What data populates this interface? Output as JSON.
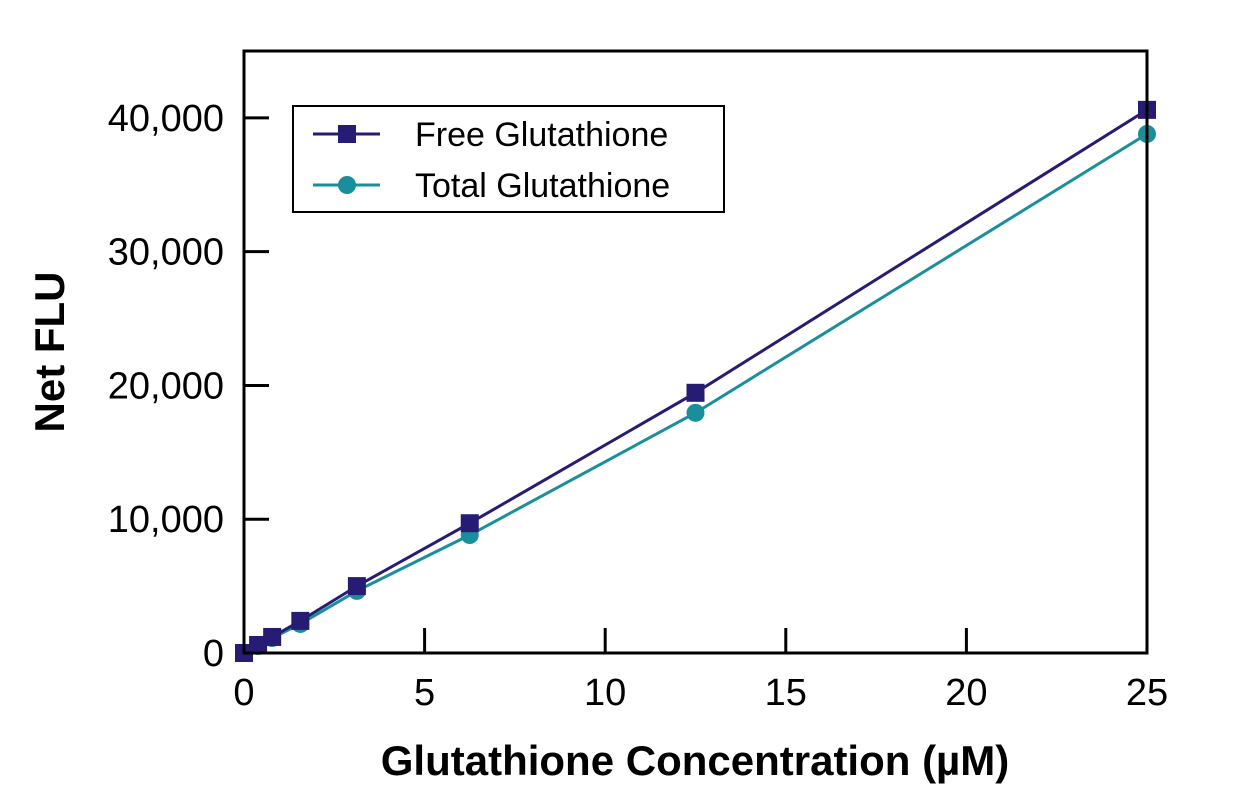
{
  "chart_data": {
    "type": "line",
    "title": "",
    "xlabel": "Glutathione Concentration (µM)",
    "ylabel": "Net FLU",
    "xlim": [
      0,
      25
    ],
    "ylim": [
      0,
      45000
    ],
    "xticks": [
      0,
      5,
      10,
      15,
      20,
      25
    ],
    "xtick_labels": [
      "0",
      "5",
      "10",
      "15",
      "20",
      "25"
    ],
    "yticks": [
      0,
      10000,
      20000,
      30000,
      40000
    ],
    "ytick_labels": [
      "0",
      "10,000",
      "20,000",
      "30,000",
      "40,000"
    ],
    "grid": false,
    "legend_position": "top-left",
    "x": [
      0,
      0.39,
      0.78,
      1.56,
      3.125,
      6.25,
      12.5,
      25
    ],
    "series": [
      {
        "name": "Free Glutathione",
        "marker": "square",
        "color": "#261c73",
        "values": [
          0,
          600,
          1200,
          2400,
          5000,
          9700,
          19450,
          40600
        ]
      },
      {
        "name": "Total Glutathione",
        "marker": "circle",
        "color": "#1a8f9c",
        "values": [
          0,
          520,
          1120,
          2170,
          4640,
          8820,
          17950,
          38800
        ]
      }
    ]
  }
}
